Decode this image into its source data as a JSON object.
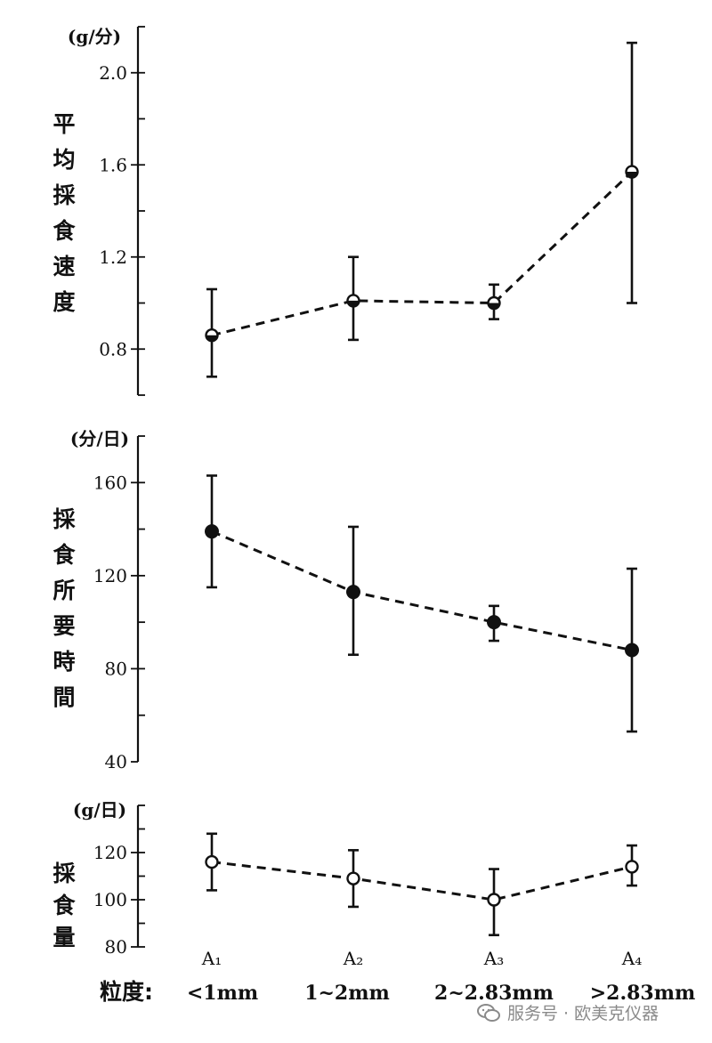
{
  "chart_data": [
    {
      "type": "line",
      "id": "speed",
      "unit_label": "(g/分)",
      "ylabel_chars": [
        "平",
        "均",
        "採",
        "食",
        "速",
        "度"
      ],
      "ylim": [
        0.6,
        2.2
      ],
      "yticks": [
        0.8,
        1.2,
        1.6,
        2.0
      ],
      "ytick_labels": [
        "0.8",
        "1.2",
        "1.6",
        "2.0"
      ],
      "minor_ticks": [
        0.6,
        0.8,
        1.0,
        1.2,
        1.4,
        1.6,
        1.8,
        2.0,
        2.2
      ],
      "marker": "half",
      "series": [
        {
          "name": "平均採食速度",
          "values": [
            0.86,
            1.01,
            1.0,
            1.57
          ],
          "err_low": [
            0.68,
            0.84,
            0.93,
            1.0
          ],
          "err_high": [
            1.06,
            1.2,
            1.08,
            2.13
          ]
        }
      ]
    },
    {
      "type": "line",
      "id": "time",
      "unit_label": "(分/日)",
      "ylabel_chars": [
        "採",
        "食",
        "所",
        "要",
        "時",
        "間"
      ],
      "ylim": [
        40,
        180
      ],
      "yticks": [
        40,
        80,
        120,
        160
      ],
      "ytick_labels": [
        "40",
        "80",
        "120",
        "160"
      ],
      "minor_ticks": [
        60,
        80,
        100,
        120,
        140,
        160,
        180
      ],
      "marker": "filled",
      "series": [
        {
          "name": "採食所要時間",
          "values": [
            139,
            113,
            100,
            88
          ],
          "err_low": [
            115,
            86,
            92,
            53
          ],
          "err_high": [
            163,
            141,
            107,
            123
          ]
        }
      ]
    },
    {
      "type": "line",
      "id": "amount",
      "unit_label": "(g/日)",
      "ylabel_chars": [
        "採",
        "食",
        "量"
      ],
      "ylim": [
        80,
        140
      ],
      "yticks": [
        80,
        100,
        120
      ],
      "ytick_labels": [
        "80",
        "100",
        "120"
      ],
      "minor_ticks": [
        80,
        90,
        100,
        110,
        120,
        130,
        140
      ],
      "marker": "open",
      "series": [
        {
          "name": "採食量",
          "values": [
            116,
            109,
            100,
            114
          ],
          "err_low": [
            104,
            97,
            85,
            106
          ],
          "err_high": [
            128,
            121,
            113,
            123
          ]
        }
      ]
    }
  ],
  "x_axis": {
    "groups": [
      "A₁",
      "A₂",
      "A₃",
      "A₄"
    ],
    "granularity_label": "粒度:",
    "granularity_values": [
      "<1mm",
      "1~2mm",
      "2~2.83mm",
      ">2.83mm"
    ]
  },
  "watermark": {
    "text": "服务号 · 欧美克仪器"
  }
}
